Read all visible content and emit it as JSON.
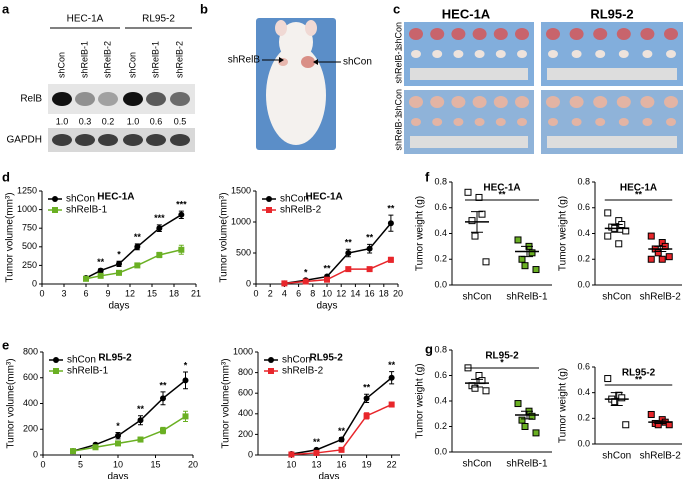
{
  "panel_labels": [
    "a",
    "b",
    "c",
    "d",
    "e",
    "f",
    "g"
  ],
  "blot": {
    "cell_lines": [
      "HEC-1A",
      "RL95-2"
    ],
    "lanes": [
      "shCon",
      "shRelB-1",
      "shRelB-2",
      "shCon",
      "shRelB-1",
      "shRelB-2"
    ],
    "rows": [
      "RelB",
      "GAPDH"
    ],
    "quantification": [
      "1.0",
      "0.3",
      "0.2",
      "1.0",
      "0.6",
      "0.5"
    ]
  },
  "mouse": {
    "labels": [
      "shRelB",
      "shCon"
    ]
  },
  "tumors": {
    "cell_lines": [
      "HEC-1A",
      "RL95-2"
    ],
    "row_labels": [
      "shCon",
      "shRelB-1",
      "shCon",
      "shRelB-1"
    ]
  },
  "chart_data": [
    {
      "type": "line",
      "title": "HEC-1A",
      "xlabel": "days",
      "ylabel": "Tumor volume(mm³)",
      "legend": "upper left",
      "x": [
        6,
        8,
        10.5,
        13,
        16,
        19
      ],
      "xlim": [
        0,
        21
      ],
      "xticks": [
        0,
        3,
        6,
        9,
        12,
        15,
        18,
        21
      ],
      "ylim": [
        0,
        1250
      ],
      "yticks": [
        0,
        250,
        500,
        750,
        1000,
        1250
      ],
      "series": [
        {
          "name": "shCon",
          "color": "#000000",
          "marker": "circle",
          "values": [
            80,
            180,
            270,
            500,
            750,
            930
          ],
          "errors": [
            15,
            25,
            35,
            40,
            45,
            50
          ]
        },
        {
          "name": "shRelB-1",
          "color": "#6ab023",
          "marker": "square",
          "values": [
            70,
            110,
            150,
            250,
            390,
            460
          ],
          "errors": [
            10,
            15,
            20,
            25,
            35,
            60
          ]
        }
      ],
      "significance": [
        null,
        "**",
        "*",
        "**",
        "***",
        "***"
      ]
    },
    {
      "type": "line",
      "title": "HEC-1A",
      "xlabel": "days",
      "ylabel": "Tumor volume(mm³)",
      "legend": "upper left",
      "x": [
        4,
        7,
        10,
        13,
        16,
        19
      ],
      "xlim": [
        0,
        20
      ],
      "xticks": [
        0,
        2,
        4,
        6,
        8,
        10,
        12,
        14,
        16,
        18,
        20
      ],
      "ylim": [
        0,
        1500
      ],
      "yticks": [
        0,
        500,
        1000,
        1500
      ],
      "series": [
        {
          "name": "shCon",
          "color": "#000000",
          "marker": "circle",
          "values": [
            10,
            60,
            120,
            500,
            570,
            980
          ],
          "errors": [
            5,
            15,
            25,
            60,
            70,
            130
          ]
        },
        {
          "name": "shRelB-2",
          "color": "#e8262b",
          "marker": "square",
          "values": [
            10,
            40,
            70,
            240,
            240,
            390
          ],
          "errors": [
            5,
            10,
            15,
            20,
            20,
            40
          ]
        }
      ],
      "significance": [
        null,
        "*",
        "**",
        "**",
        "**",
        "**"
      ]
    },
    {
      "type": "line",
      "title": "RL95-2",
      "xlabel": "days",
      "ylabel": "Tumor volume(mm³)",
      "legend": "upper left",
      "x": [
        4,
        7,
        10,
        13,
        16,
        19
      ],
      "xlim": [
        0,
        20
      ],
      "xticks": [
        0,
        5,
        10,
        15,
        20
      ],
      "ylim": [
        0,
        800
      ],
      "yticks": [
        0,
        200,
        400,
        600,
        800
      ],
      "series": [
        {
          "name": "shCon",
          "color": "#000000",
          "marker": "circle",
          "values": [
            30,
            80,
            150,
            270,
            440,
            580
          ],
          "errors": [
            5,
            10,
            25,
            35,
            50,
            65
          ]
        },
        {
          "name": "shRelB-1",
          "color": "#6ab023",
          "marker": "square",
          "values": [
            30,
            60,
            90,
            120,
            190,
            300
          ],
          "errors": [
            5,
            8,
            12,
            18,
            25,
            40
          ]
        }
      ],
      "significance": [
        null,
        null,
        "*",
        "**",
        "**",
        "*"
      ]
    },
    {
      "type": "line",
      "title": "RL95-2",
      "xlabel": "days",
      "ylabel": "Tumor volume(mm³)",
      "legend": "upper left",
      "x": [
        10,
        13,
        16,
        19,
        22
      ],
      "xlim": [
        6,
        23
      ],
      "xticks": [
        10,
        13,
        16,
        19,
        22
      ],
      "ylim": [
        0,
        1000
      ],
      "yticks": [
        0,
        200,
        400,
        600,
        800,
        1000
      ],
      "series": [
        {
          "name": "shCon",
          "color": "#000000",
          "marker": "circle",
          "values": [
            10,
            50,
            150,
            550,
            750
          ],
          "errors": [
            5,
            10,
            20,
            40,
            60
          ]
        },
        {
          "name": "shRelB-2",
          "color": "#e8262b",
          "marker": "square",
          "values": [
            5,
            20,
            50,
            380,
            490
          ],
          "errors": [
            3,
            5,
            10,
            30,
            20
          ]
        }
      ],
      "significance": [
        null,
        "**",
        "**",
        "**",
        "**"
      ]
    },
    {
      "type": "dot",
      "title": "HEC-1A",
      "ylabel": "Tumor weight (g)",
      "categories": [
        "shCon",
        "shRelB-1"
      ],
      "colors": [
        "#ffffff",
        "#6ab023"
      ],
      "ylim": [
        0,
        0.8
      ],
      "yticks": [
        {
          "value": 0,
          "label": "0.0"
        },
        0.2,
        0.4,
        0.6,
        0.8
      ],
      "values": [
        [
          0.72,
          0.68,
          0.55,
          0.5,
          0.38,
          0.18
        ],
        [
          0.35,
          0.3,
          0.25,
          0.2,
          0.15,
          0.12
        ]
      ],
      "means": [
        0.49,
        0.26
      ],
      "errors": [
        0.08,
        0.04
      ],
      "significance": "**"
    },
    {
      "type": "dot",
      "title": "HEC-1A",
      "ylabel": "Tumor weight (g)",
      "categories": [
        "shCon",
        "shRelB-2"
      ],
      "colors": [
        "#ffffff",
        "#e8262b"
      ],
      "ylim": [
        0,
        0.8
      ],
      "yticks": [
        {
          "value": 0,
          "label": "0.0"
        },
        0.2,
        0.4,
        0.6,
        0.8
      ],
      "values": [
        [
          0.56,
          0.5,
          0.47,
          0.45,
          0.44,
          0.42,
          0.38,
          0.32
        ],
        [
          0.38,
          0.33,
          0.3,
          0.28,
          0.25,
          0.22,
          0.2,
          0.2
        ]
      ],
      "means": [
        0.44,
        0.28
      ],
      "errors": [
        0.03,
        0.02
      ],
      "significance": "**"
    },
    {
      "type": "dot",
      "title": "RL95-2",
      "ylabel": "Tumor weight (g)",
      "categories": [
        "shCon",
        "shRelB-1"
      ],
      "colors": [
        "#ffffff",
        "#6ab023"
      ],
      "ylim": [
        0,
        0.8
      ],
      "yticks": [
        {
          "value": 0,
          "label": "0.0"
        },
        0.2,
        0.4,
        0.6,
        0.8
      ],
      "values": [
        [
          0.66,
          0.6,
          0.56,
          0.52,
          0.5,
          0.48
        ],
        [
          0.38,
          0.32,
          0.28,
          0.25,
          0.2,
          0.15
        ]
      ],
      "means": [
        0.54,
        0.29
      ],
      "errors": [
        0.03,
        0.03
      ],
      "significance": "*"
    },
    {
      "type": "dot",
      "title": "RL95-2",
      "ylabel": "Tumor weight (g)",
      "categories": [
        "shCon",
        "shRelB-2"
      ],
      "colors": [
        "#ffffff",
        "#e8262b"
      ],
      "ylim": [
        0,
        0.6
      ],
      "yticks": [
        {
          "value": 0,
          "label": "0.0"
        },
        0.2,
        0.4,
        0.6
      ],
      "values": [
        [
          0.51,
          0.38,
          0.36,
          0.35,
          0.33,
          0.15
        ],
        [
          0.23,
          0.19,
          0.17,
          0.16,
          0.15,
          0.15
        ]
      ],
      "means": [
        0.35,
        0.17
      ],
      "errors": [
        0.05,
        0.01
      ],
      "significance": "**"
    }
  ]
}
